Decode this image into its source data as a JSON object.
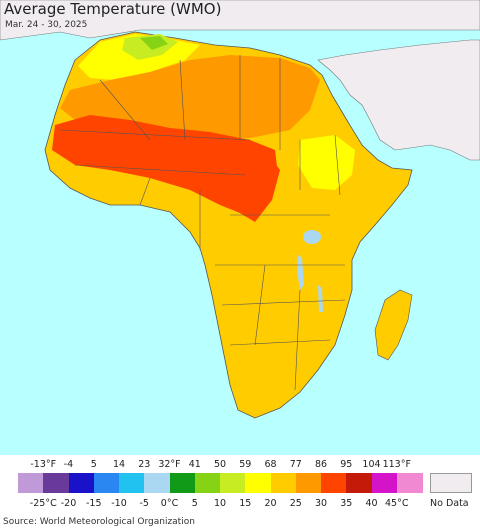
{
  "header": {
    "title": "Average Temperature (WMO)",
    "date_range": "Mar. 24 - 30, 2025"
  },
  "legend": {
    "fahrenheit_ticks": [
      "-13°F",
      "-4",
      "5",
      "14",
      "23",
      "32°F",
      "41",
      "50",
      "59",
      "68",
      "77",
      "86",
      "95",
      "104",
      "113°F"
    ],
    "celsius_ticks": [
      "-25°C",
      "-20",
      "-15",
      "-10",
      "-5",
      "0°C",
      "5",
      "10",
      "15",
      "20",
      "25",
      "30",
      "35",
      "40",
      "45°C"
    ],
    "colors": [
      "#c09ad8",
      "#6a3a9a",
      "#1a12c8",
      "#2a86f0",
      "#22c2f0",
      "#aad8f2",
      "#109a18",
      "#86d214",
      "#c8ec22",
      "#ffff00",
      "#ffcc00",
      "#ff9900",
      "#ff4400",
      "#c41a0a",
      "#d414c8",
      "#f088d2"
    ],
    "no_data_label": "No Data",
    "no_data_color": "#f0ecf0"
  },
  "map": {
    "ocean_color": "#b8ffff",
    "non_africa_land_color": "#f0ecf0",
    "border_color": "#555555"
  },
  "footer": {
    "source": "Source: World Meteorological Organization"
  }
}
